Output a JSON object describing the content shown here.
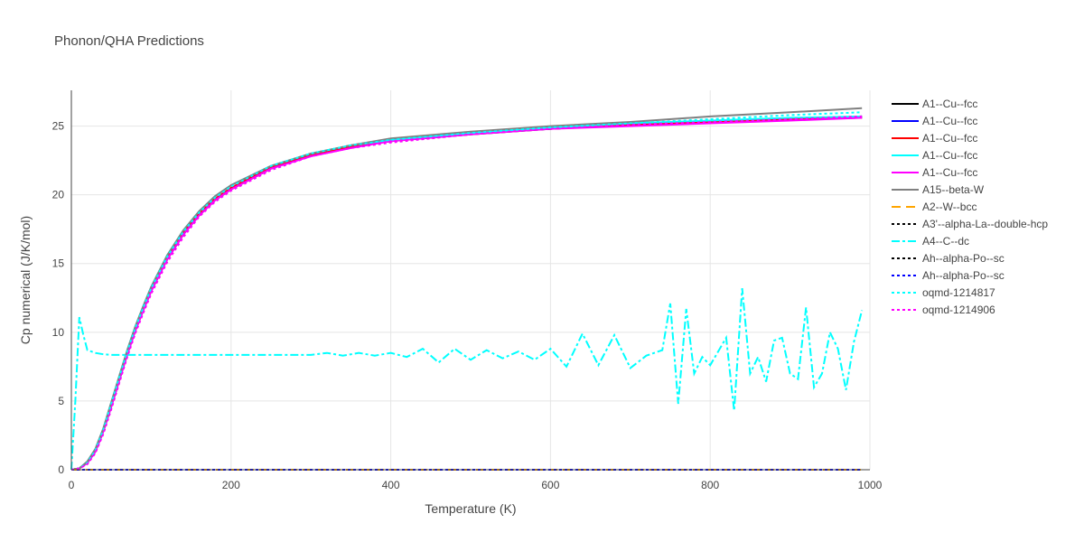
{
  "chart_data": {
    "type": "line",
    "title": "Phonon/QHA Predictions",
    "xlabel": "Temperature (K)",
    "ylabel": "Cp numerical (J/K/mol)",
    "xlim": [
      0,
      1000
    ],
    "ylim": [
      0,
      27.6
    ],
    "xticks": [
      0,
      200,
      400,
      600,
      800,
      1000
    ],
    "yticks": [
      0,
      5,
      10,
      15,
      20,
      25
    ],
    "grid": true,
    "legend_position": "right",
    "x": [
      0,
      10,
      20,
      30,
      40,
      50,
      60,
      70,
      80,
      90,
      100,
      120,
      140,
      160,
      180,
      200,
      250,
      300,
      350,
      400,
      500,
      600,
      700,
      800,
      900,
      990
    ],
    "series": [
      {
        "name": "A1--Cu--fcc",
        "color": "#000000",
        "dash": "solid",
        "values": [
          0,
          0.1,
          0.5,
          1.3,
          2.8,
          4.6,
          6.5,
          8.4,
          10.1,
          11.6,
          13.0,
          15.3,
          17.1,
          18.5,
          19.6,
          20.4,
          21.9,
          22.9,
          23.5,
          23.9,
          24.4,
          24.8,
          25.1,
          25.3,
          25.5,
          25.7
        ]
      },
      {
        "name": "A1--Cu--fcc",
        "color": "#0000ff",
        "dash": "solid",
        "values": [
          0,
          0.1,
          0.5,
          1.4,
          2.9,
          4.7,
          6.6,
          8.5,
          10.2,
          11.7,
          13.1,
          15.4,
          17.2,
          18.6,
          19.7,
          20.5,
          22.0,
          22.9,
          23.5,
          23.9,
          24.5,
          24.8,
          25.1,
          25.3,
          25.5,
          25.6
        ]
      },
      {
        "name": "A1--Cu--fcc",
        "color": "#ff0000",
        "dash": "solid",
        "values": [
          0,
          0.1,
          0.5,
          1.4,
          2.9,
          4.7,
          6.6,
          8.5,
          10.2,
          11.7,
          13.1,
          15.4,
          17.2,
          18.6,
          19.7,
          20.5,
          22.0,
          22.9,
          23.5,
          23.9,
          24.5,
          24.8,
          25.1,
          25.3,
          25.5,
          25.6
        ]
      },
      {
        "name": "A1--Cu--fcc",
        "color": "#00ffff",
        "dash": "solid",
        "values": [
          0,
          0.1,
          0.6,
          1.5,
          3.0,
          4.9,
          6.8,
          8.7,
          10.4,
          11.9,
          13.3,
          15.6,
          17.4,
          18.8,
          19.9,
          20.7,
          22.1,
          23.0,
          23.6,
          24.0,
          24.5,
          24.9,
          25.2,
          25.4,
          25.6,
          25.7
        ]
      },
      {
        "name": "A1--Cu--fcc",
        "color": "#ff00ff",
        "dash": "solid",
        "values": [
          0,
          0.1,
          0.5,
          1.3,
          2.8,
          4.6,
          6.5,
          8.4,
          10.1,
          11.6,
          13.0,
          15.3,
          17.1,
          18.5,
          19.6,
          20.4,
          21.9,
          22.8,
          23.4,
          23.9,
          24.4,
          24.8,
          25.0,
          25.2,
          25.4,
          25.6
        ]
      },
      {
        "name": "A15--beta-W",
        "color": "#808080",
        "dash": "solid",
        "values": [
          0,
          0.1,
          0.6,
          1.5,
          3.0,
          4.9,
          6.8,
          8.7,
          10.4,
          11.9,
          13.3,
          15.6,
          17.4,
          18.8,
          19.9,
          20.7,
          22.1,
          23.0,
          23.6,
          24.1,
          24.6,
          25.0,
          25.3,
          25.7,
          26.0,
          26.3
        ]
      },
      {
        "name": "A2--W--bcc",
        "color": "#ffa500",
        "dash": "10,6",
        "values": [
          0,
          0,
          0,
          0,
          0,
          0,
          0,
          0,
          0,
          0,
          0,
          0,
          0,
          0,
          0,
          0,
          0,
          0,
          0,
          0,
          0,
          0,
          0,
          0,
          0,
          0
        ]
      },
      {
        "name": "A3'--alpha-La--double-hcp",
        "color": "#000000",
        "dash": "3,3",
        "values": [
          0,
          0,
          0,
          0,
          0,
          0,
          0,
          0,
          0,
          0,
          0,
          0,
          0,
          0,
          0,
          0,
          0,
          0,
          0,
          0,
          0,
          0,
          0,
          0,
          0,
          0
        ]
      },
      {
        "name": "A4--C--dc",
        "color": "#00ffff",
        "dash": "9,3,3,3",
        "x": [
          0,
          5,
          10,
          15,
          20,
          25,
          30,
          40,
          50,
          60,
          70,
          80,
          100,
          150,
          200,
          250,
          300,
          320,
          340,
          360,
          380,
          400,
          420,
          440,
          460,
          480,
          500,
          520,
          540,
          560,
          580,
          600,
          620,
          640,
          660,
          680,
          700,
          720,
          740,
          750,
          760,
          770,
          780,
          790,
          800,
          820,
          830,
          840,
          850,
          860,
          870,
          880,
          890,
          900,
          910,
          920,
          930,
          940,
          950,
          960,
          970,
          980,
          990
        ],
        "values": [
          0,
          5.0,
          11.1,
          9.8,
          8.7,
          8.6,
          8.5,
          8.4,
          8.35,
          8.35,
          8.35,
          8.35,
          8.35,
          8.35,
          8.35,
          8.35,
          8.35,
          8.5,
          8.3,
          8.5,
          8.3,
          8.5,
          8.2,
          8.8,
          7.8,
          8.8,
          8.0,
          8.7,
          8.1,
          8.6,
          8.0,
          8.8,
          7.5,
          9.9,
          7.6,
          9.8,
          7.4,
          8.3,
          8.7,
          12.1,
          4.8,
          11.7,
          7.0,
          8.2,
          7.6,
          9.6,
          4.3,
          13.2,
          7.0,
          8.2,
          6.4,
          9.4,
          9.6,
          7.0,
          6.6,
          11.8,
          6.0,
          7.0,
          10.0,
          8.8,
          5.8,
          9.3,
          11.6
        ]
      },
      {
        "name": "Ah--alpha-Po--sc",
        "color": "#000000",
        "dash": "3,3",
        "values": [
          0,
          0,
          0,
          0,
          0,
          0,
          0,
          0,
          0,
          0,
          0,
          0,
          0,
          0,
          0,
          0,
          0,
          0,
          0,
          0,
          0,
          0,
          0,
          0,
          0,
          0
        ]
      },
      {
        "name": "Ah--alpha-Po--sc",
        "color": "#0000ff",
        "dash": "3,3",
        "values": [
          0,
          0,
          0,
          0,
          0,
          0,
          0,
          0,
          0,
          0,
          0,
          0,
          0,
          0,
          0,
          0,
          0,
          0,
          0,
          0,
          0,
          0,
          0,
          0,
          0,
          0
        ]
      },
      {
        "name": "oqmd-1214817",
        "color": "#00ffff",
        "dash": "3,3",
        "values": [
          0,
          0.1,
          0.5,
          1.4,
          2.9,
          4.8,
          6.7,
          8.6,
          10.3,
          11.8,
          13.2,
          15.5,
          17.3,
          18.7,
          19.8,
          20.6,
          22.1,
          23.0,
          23.6,
          24.0,
          24.5,
          24.9,
          25.2,
          25.5,
          25.8,
          26.0
        ]
      },
      {
        "name": "oqmd-1214906",
        "color": "#ff00ff",
        "dash": "3,3",
        "values": [
          0,
          0.1,
          0.4,
          1.2,
          2.6,
          4.4,
          6.3,
          8.2,
          9.9,
          11.4,
          12.8,
          15.1,
          16.9,
          18.4,
          19.5,
          20.3,
          21.8,
          22.8,
          23.4,
          23.8,
          24.4,
          24.8,
          25.1,
          25.3,
          25.5,
          25.7
        ]
      }
    ]
  }
}
